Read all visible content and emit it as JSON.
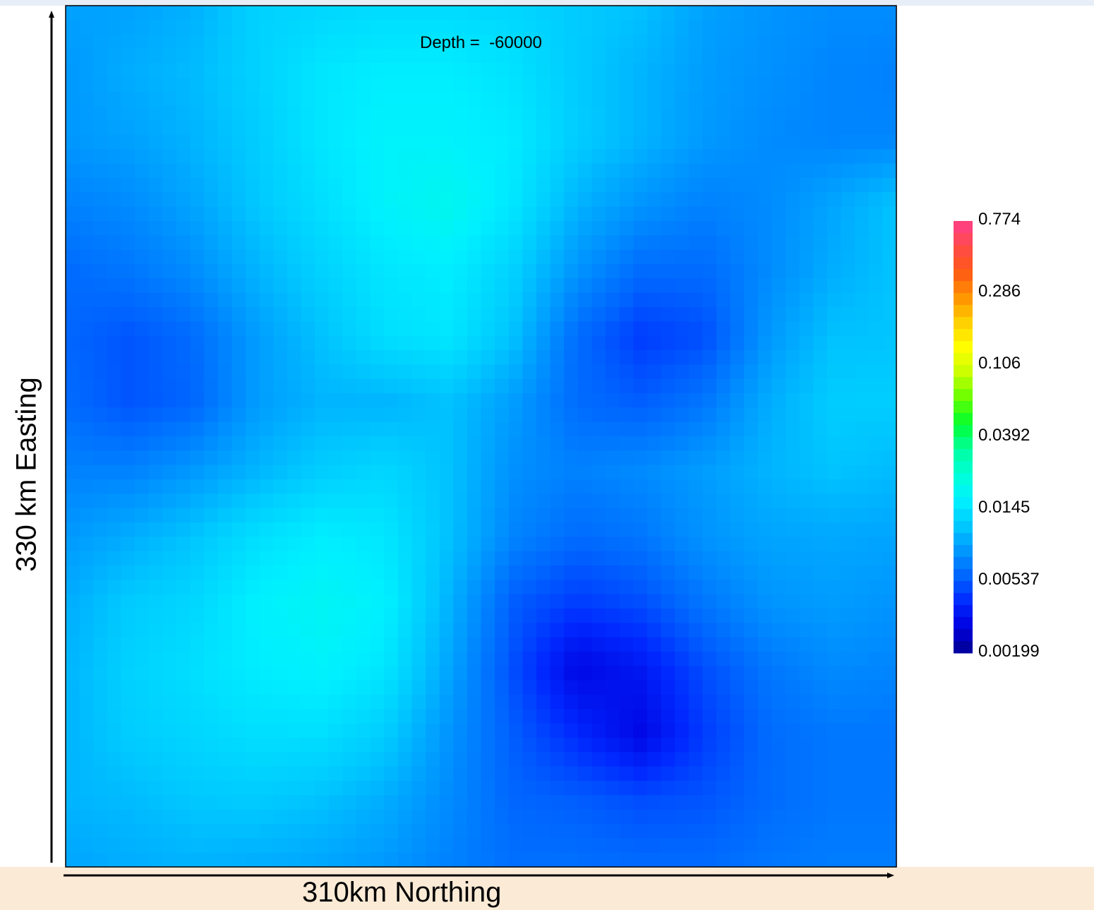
{
  "colors": {
    "top_strip": "#e8eef7",
    "bottom_strip": "#fbebd6",
    "plot_border": "#000000"
  },
  "chart_data": {
    "type": "heatmap",
    "title": "Depth =  -60000",
    "xlabel": "310km Northing",
    "ylabel": "330 km Easting",
    "legend_placement": "right",
    "colorbar_ticks": [
      "0.774",
      "0.286",
      "0.106",
      "0.0392",
      "0.0145",
      "0.00537",
      "0.00199"
    ],
    "colormap": [
      "#ff3f8a",
      "#ff4a4a",
      "#ff5a14",
      "#ff9400",
      "#ffd000",
      "#ffff00",
      "#c8ff00",
      "#64ff00",
      "#00ff30",
      "#00ffa0",
      "#00ffd8",
      "#00f0ff",
      "#00c8ff",
      "#0096ff",
      "#0064ff",
      "#0028ff",
      "#0000e0",
      "#000090"
    ],
    "values": [
      [
        0.0088,
        0.0088,
        0.0098,
        0.0125,
        0.013,
        0.0135,
        0.0135,
        0.013,
        0.0118,
        0.011,
        0.0088,
        0.008,
        0.0076,
        0.0076
      ],
      [
        0.0082,
        0.0095,
        0.0105,
        0.0125,
        0.015,
        0.016,
        0.016,
        0.0145,
        0.0118,
        0.01,
        0.0085,
        0.0078,
        0.0072,
        0.007
      ],
      [
        0.0082,
        0.0088,
        0.01,
        0.012,
        0.015,
        0.017,
        0.017,
        0.0155,
        0.012,
        0.01,
        0.0083,
        0.0075,
        0.0072,
        0.0072
      ],
      [
        0.007,
        0.0075,
        0.009,
        0.0115,
        0.014,
        0.017,
        0.019,
        0.015,
        0.01,
        0.008,
        0.007,
        0.0075,
        0.009,
        0.0112
      ],
      [
        0.006,
        0.0065,
        0.0076,
        0.01,
        0.0125,
        0.015,
        0.016,
        0.0125,
        0.008,
        0.006,
        0.006,
        0.0075,
        0.0095,
        0.0112
      ],
      [
        0.0058,
        0.0052,
        0.006,
        0.0085,
        0.011,
        0.014,
        0.015,
        0.011,
        0.006,
        0.0045,
        0.005,
        0.0082,
        0.011,
        0.0112
      ],
      [
        0.006,
        0.0052,
        0.0058,
        0.0085,
        0.01,
        0.01,
        0.011,
        0.0085,
        0.006,
        0.0055,
        0.0065,
        0.0095,
        0.012,
        0.012
      ],
      [
        0.007,
        0.007,
        0.0082,
        0.01,
        0.012,
        0.013,
        0.011,
        0.0078,
        0.007,
        0.0075,
        0.0085,
        0.01,
        0.0112,
        0.0105
      ],
      [
        0.0082,
        0.0095,
        0.0112,
        0.014,
        0.016,
        0.015,
        0.011,
        0.0072,
        0.006,
        0.0065,
        0.008,
        0.009,
        0.0092,
        0.009
      ],
      [
        0.0095,
        0.0118,
        0.013,
        0.0165,
        0.018,
        0.0165,
        0.01,
        0.0055,
        0.0045,
        0.005,
        0.0065,
        0.008,
        0.0085,
        0.008
      ],
      [
        0.01,
        0.0125,
        0.014,
        0.016,
        0.017,
        0.015,
        0.009,
        0.005,
        0.003,
        0.0035,
        0.005,
        0.0065,
        0.0075,
        0.0072
      ],
      [
        0.01,
        0.012,
        0.013,
        0.014,
        0.014,
        0.012,
        0.008,
        0.0055,
        0.004,
        0.003,
        0.0045,
        0.006,
        0.0065,
        0.0065
      ],
      [
        0.01,
        0.0105,
        0.0115,
        0.0118,
        0.011,
        0.0095,
        0.0075,
        0.0058,
        0.0055,
        0.005,
        0.0052,
        0.006,
        0.0065,
        0.0065
      ],
      [
        0.009,
        0.0095,
        0.0098,
        0.0095,
        0.009,
        0.0082,
        0.007,
        0.0062,
        0.0062,
        0.006,
        0.006,
        0.0065,
        0.0068,
        0.0068
      ]
    ]
  }
}
